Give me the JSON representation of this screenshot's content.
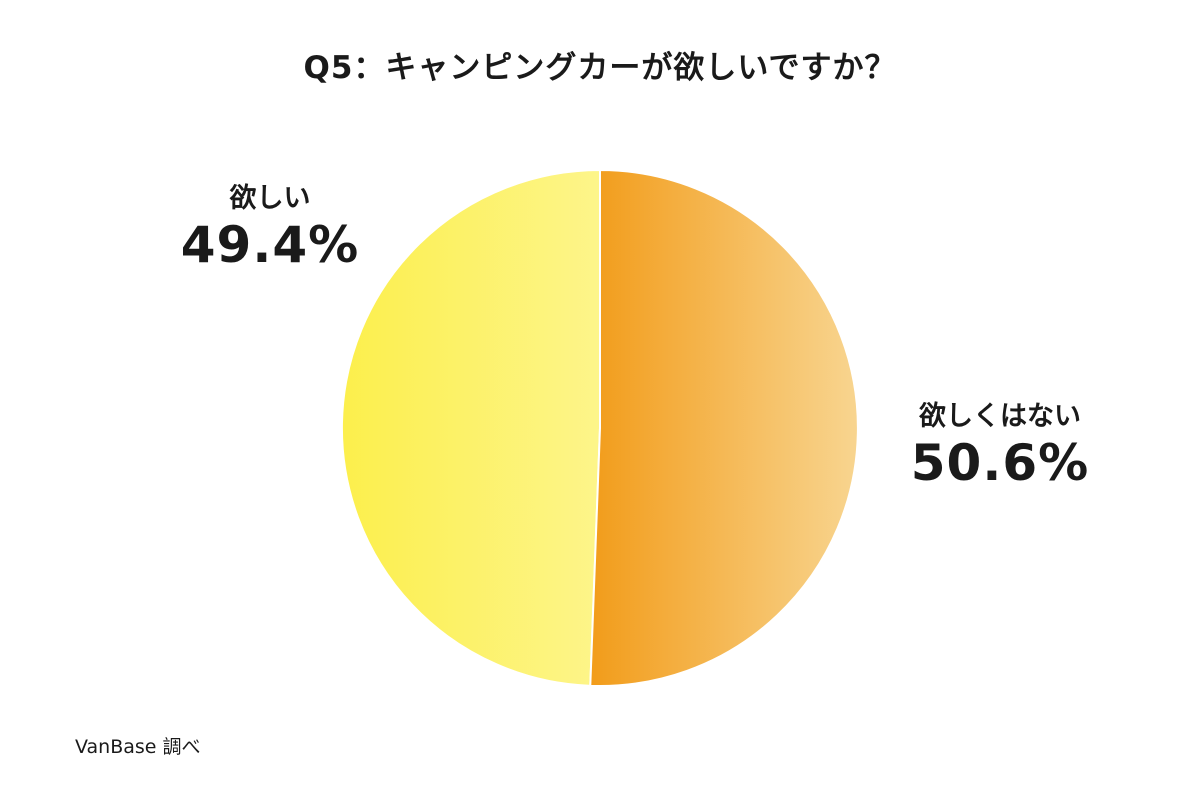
{
  "chart_data": {
    "type": "pie",
    "title": "Q5：キャンピングカーが欲しいですか？",
    "slices": [
      {
        "label": "欲しい",
        "value": 49.4,
        "value_label": "49.4%",
        "color": "#fcef4c",
        "color_end": "#fdf58a"
      },
      {
        "label": "欲しくはない",
        "value": 50.6,
        "value_label": "50.6%",
        "color": "#f29c1a",
        "color_end": "#f8d590"
      }
    ],
    "unit": "%"
  },
  "source": "VanBase 調べ"
}
